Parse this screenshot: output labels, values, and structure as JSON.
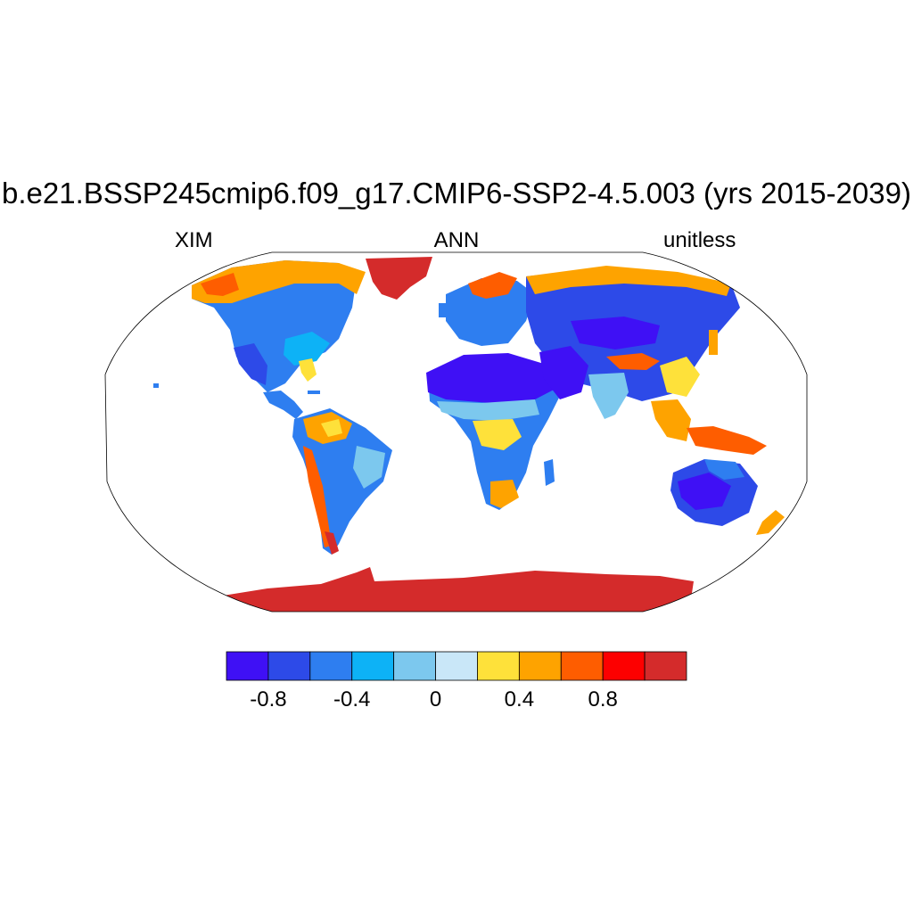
{
  "title": "b.e21.BSSP245cmip6.f09_g17.CMIP6-SSP2-4.5.003 (yrs 2015-2039)",
  "subtitle_left": "XIM",
  "subtitle_center": "ANN",
  "subtitle_right": "unitless",
  "colorbar": {
    "colors": [
      "#3f10f5",
      "#2d4ae8",
      "#2e7ef0",
      "#0db2f6",
      "#7cc8ee",
      "#c9e7f8",
      "#fee13a",
      "#fea300",
      "#fe5d00",
      "#fd0000",
      "#d42b2b"
    ],
    "tick_labels": [
      "-0.8",
      "-0.4",
      "0",
      "0.4",
      "0.8"
    ],
    "boundaries": [
      -1.0,
      -0.8,
      -0.6,
      -0.4,
      -0.2,
      0,
      0.2,
      0.4,
      0.6,
      0.8,
      1.0
    ]
  },
  "map": {
    "projection": "Robinson",
    "ocean_color": "#ffffff",
    "regions": [
      {
        "name": "Greenland",
        "level": 1.0
      },
      {
        "name": "Antarctica",
        "level": 1.0
      },
      {
        "name": "Sahara",
        "level": -1.0
      },
      {
        "name": "Arabia",
        "level": -1.0
      },
      {
        "name": "Australia interior",
        "level": -0.8
      },
      {
        "name": "Central Asia",
        "level": -0.8
      },
      {
        "name": "Siberia (north coast)",
        "level": 0.6
      },
      {
        "name": "Alaska/N. Canada",
        "level": 0.6
      },
      {
        "name": "Indonesia",
        "level": 0.6
      },
      {
        "name": "Amazon",
        "level": 0.3
      },
      {
        "name": "Western North America",
        "level": -0.5
      }
    ]
  }
}
